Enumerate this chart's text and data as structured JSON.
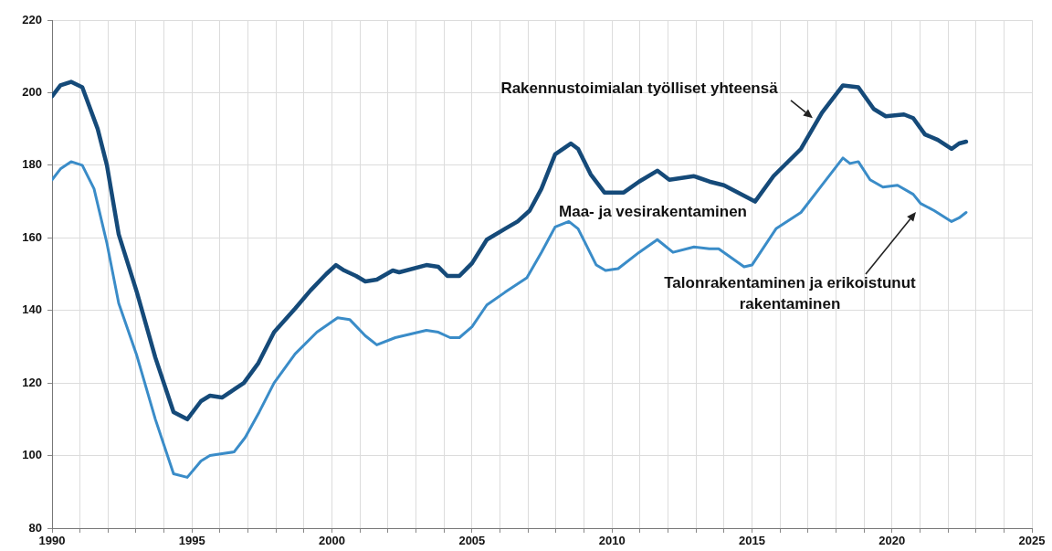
{
  "chart_data": {
    "type": "line",
    "xlim": [
      1990,
      2025
    ],
    "ylim": [
      80,
      220
    ],
    "xticks": [
      1990,
      {
        "value": 1991,
        "label": null
      },
      {
        "value": 1992,
        "label": null
      },
      {
        "value": 1993,
        "label": null
      },
      {
        "value": 1994,
        "label": null
      },
      1995,
      {
        "value": 1996,
        "label": null
      },
      {
        "value": 1997,
        "label": null
      },
      {
        "value": 1998,
        "label": null
      },
      {
        "value": 1999,
        "label": null
      },
      2000,
      {
        "value": 2001,
        "label": null
      },
      {
        "value": 2002,
        "label": null
      },
      {
        "value": 2003,
        "label": null
      },
      {
        "value": 2004,
        "label": null
      },
      2005,
      {
        "value": 2006,
        "label": null
      },
      {
        "value": 2007,
        "label": null
      },
      {
        "value": 2008,
        "label": null
      },
      {
        "value": 2009,
        "label": null
      },
      2010,
      {
        "value": 2011,
        "label": null
      },
      {
        "value": 2012,
        "label": null
      },
      {
        "value": 2013,
        "label": null
      },
      {
        "value": 2014,
        "label": null
      },
      2015,
      {
        "value": 2016,
        "label": null
      },
      {
        "value": 2017,
        "label": null
      },
      {
        "value": 2018,
        "label": null
      },
      {
        "value": 2019,
        "label": null
      },
      2020,
      {
        "value": 2021,
        "label": null
      },
      {
        "value": 2022,
        "label": null
      },
      {
        "value": 2023,
        "label": null
      },
      {
        "value": 2024,
        "label": null
      },
      2025
    ],
    "yticks": [
      80,
      100,
      120,
      140,
      160,
      180,
      200,
      220
    ],
    "grid": true,
    "legend": false,
    "marker": "none",
    "line_style": "solid",
    "series": [
      {
        "color": "#154a79",
        "x": [
          1990,
          1990.3,
          1990.68,
          1991.08,
          1991.63,
          1991.96,
          1992.38,
          1993.03,
          1993.69,
          1994.34,
          1994.83,
          1995.32,
          1995.64,
          1996.07,
          1996.85,
          1997.37,
          1997.93,
          1998.68,
          1999.23,
          1999.79,
          2000.14,
          2000.44,
          2000.86,
          2001.19,
          2001.6,
          2002.17,
          2002.4,
          2003.37,
          2003.8,
          2004.12,
          2004.55,
          2005.0,
          2005.53,
          2006.18,
          2006.63,
          2007.06,
          2007.48,
          2007.97,
          2008.53,
          2008.79,
          2009.24,
          2009.73,
          2010.42,
          2010.97,
          2011.62,
          2012.05,
          2012.93,
          2013.48,
          2014.0,
          2015.11,
          2015.77,
          2016.75,
          2017.5,
          2018.25,
          2018.8,
          2019.35,
          2019.78,
          2020.43,
          2020.76,
          2021.18,
          2021.64,
          2022.13,
          2022.4,
          2022.65
        ],
        "values": [
          199,
          202,
          203,
          201.5,
          190,
          180,
          161,
          145,
          127,
          112,
          110,
          115,
          116.5,
          116,
          120,
          125.5,
          134,
          140.5,
          145.5,
          150,
          152.5,
          151,
          149.5,
          148,
          148.5,
          151,
          150.5,
          152.5,
          152,
          149.5,
          149.5,
          153,
          159.5,
          162.5,
          164.5,
          167.5,
          173.5,
          183,
          186,
          184.5,
          177.5,
          172.5,
          172.5,
          175.5,
          178.5,
          176,
          177,
          175.5,
          174.5,
          170,
          177,
          184.5,
          194.5,
          202,
          201.5,
          195.5,
          193.5,
          194,
          193,
          188.5,
          187,
          184.5,
          186,
          186.5
        ]
      },
      {
        "color": "#3a8cc8",
        "x": [
          1990,
          1990.3,
          1990.68,
          1991.08,
          1991.5,
          1991.96,
          1992.38,
          1993.03,
          1993.69,
          1994.34,
          1994.83,
          1995.32,
          1995.64,
          1996.07,
          1996.5,
          1996.9,
          1997.4,
          1997.93,
          1998.68,
          1999.46,
          2000.2,
          2000.63,
          2001.19,
          2001.6,
          2002.26,
          2003.37,
          2003.8,
          2004.22,
          2004.55,
          2005.0,
          2005.53,
          2006.18,
          2006.96,
          2007.48,
          2007.97,
          2008.46,
          2008.79,
          2009.44,
          2009.77,
          2010.22,
          2010.97,
          2011.62,
          2012.18,
          2012.93,
          2013.48,
          2013.81,
          2014.72,
          2015.0,
          2015.86,
          2016.75,
          2017.5,
          2018.25,
          2018.5,
          2018.8,
          2019.22,
          2019.68,
          2020.2,
          2020.76,
          2021.02,
          2021.51,
          2022.13,
          2022.4,
          2022.65
        ],
        "values": [
          176,
          179,
          181,
          180,
          173.5,
          158.5,
          142,
          127.5,
          110,
          95,
          94,
          98.5,
          100,
          100.5,
          101,
          105,
          112,
          120,
          128,
          134,
          138,
          137.5,
          133,
          130.5,
          132.5,
          134.5,
          134,
          132.5,
          132.5,
          135.5,
          141.5,
          145,
          149,
          156,
          163,
          164.5,
          162.5,
          152.5,
          151,
          151.5,
          156,
          159.5,
          156,
          157.5,
          157,
          157,
          152,
          152.5,
          162.5,
          167,
          174.5,
          182,
          180.5,
          181,
          176,
          174,
          174.5,
          172,
          169.5,
          167.5,
          164.5,
          165.5,
          167
        ]
      }
    ],
    "annotations": [
      {
        "text": "Rakennustoimialan työlliset yhteensä",
        "x": 2017.17,
        "y": 193
      },
      "Maa- ja vesirakentaminen",
      "Talonrakentaminen ja erikoistunut rakentaminen"
    ]
  }
}
